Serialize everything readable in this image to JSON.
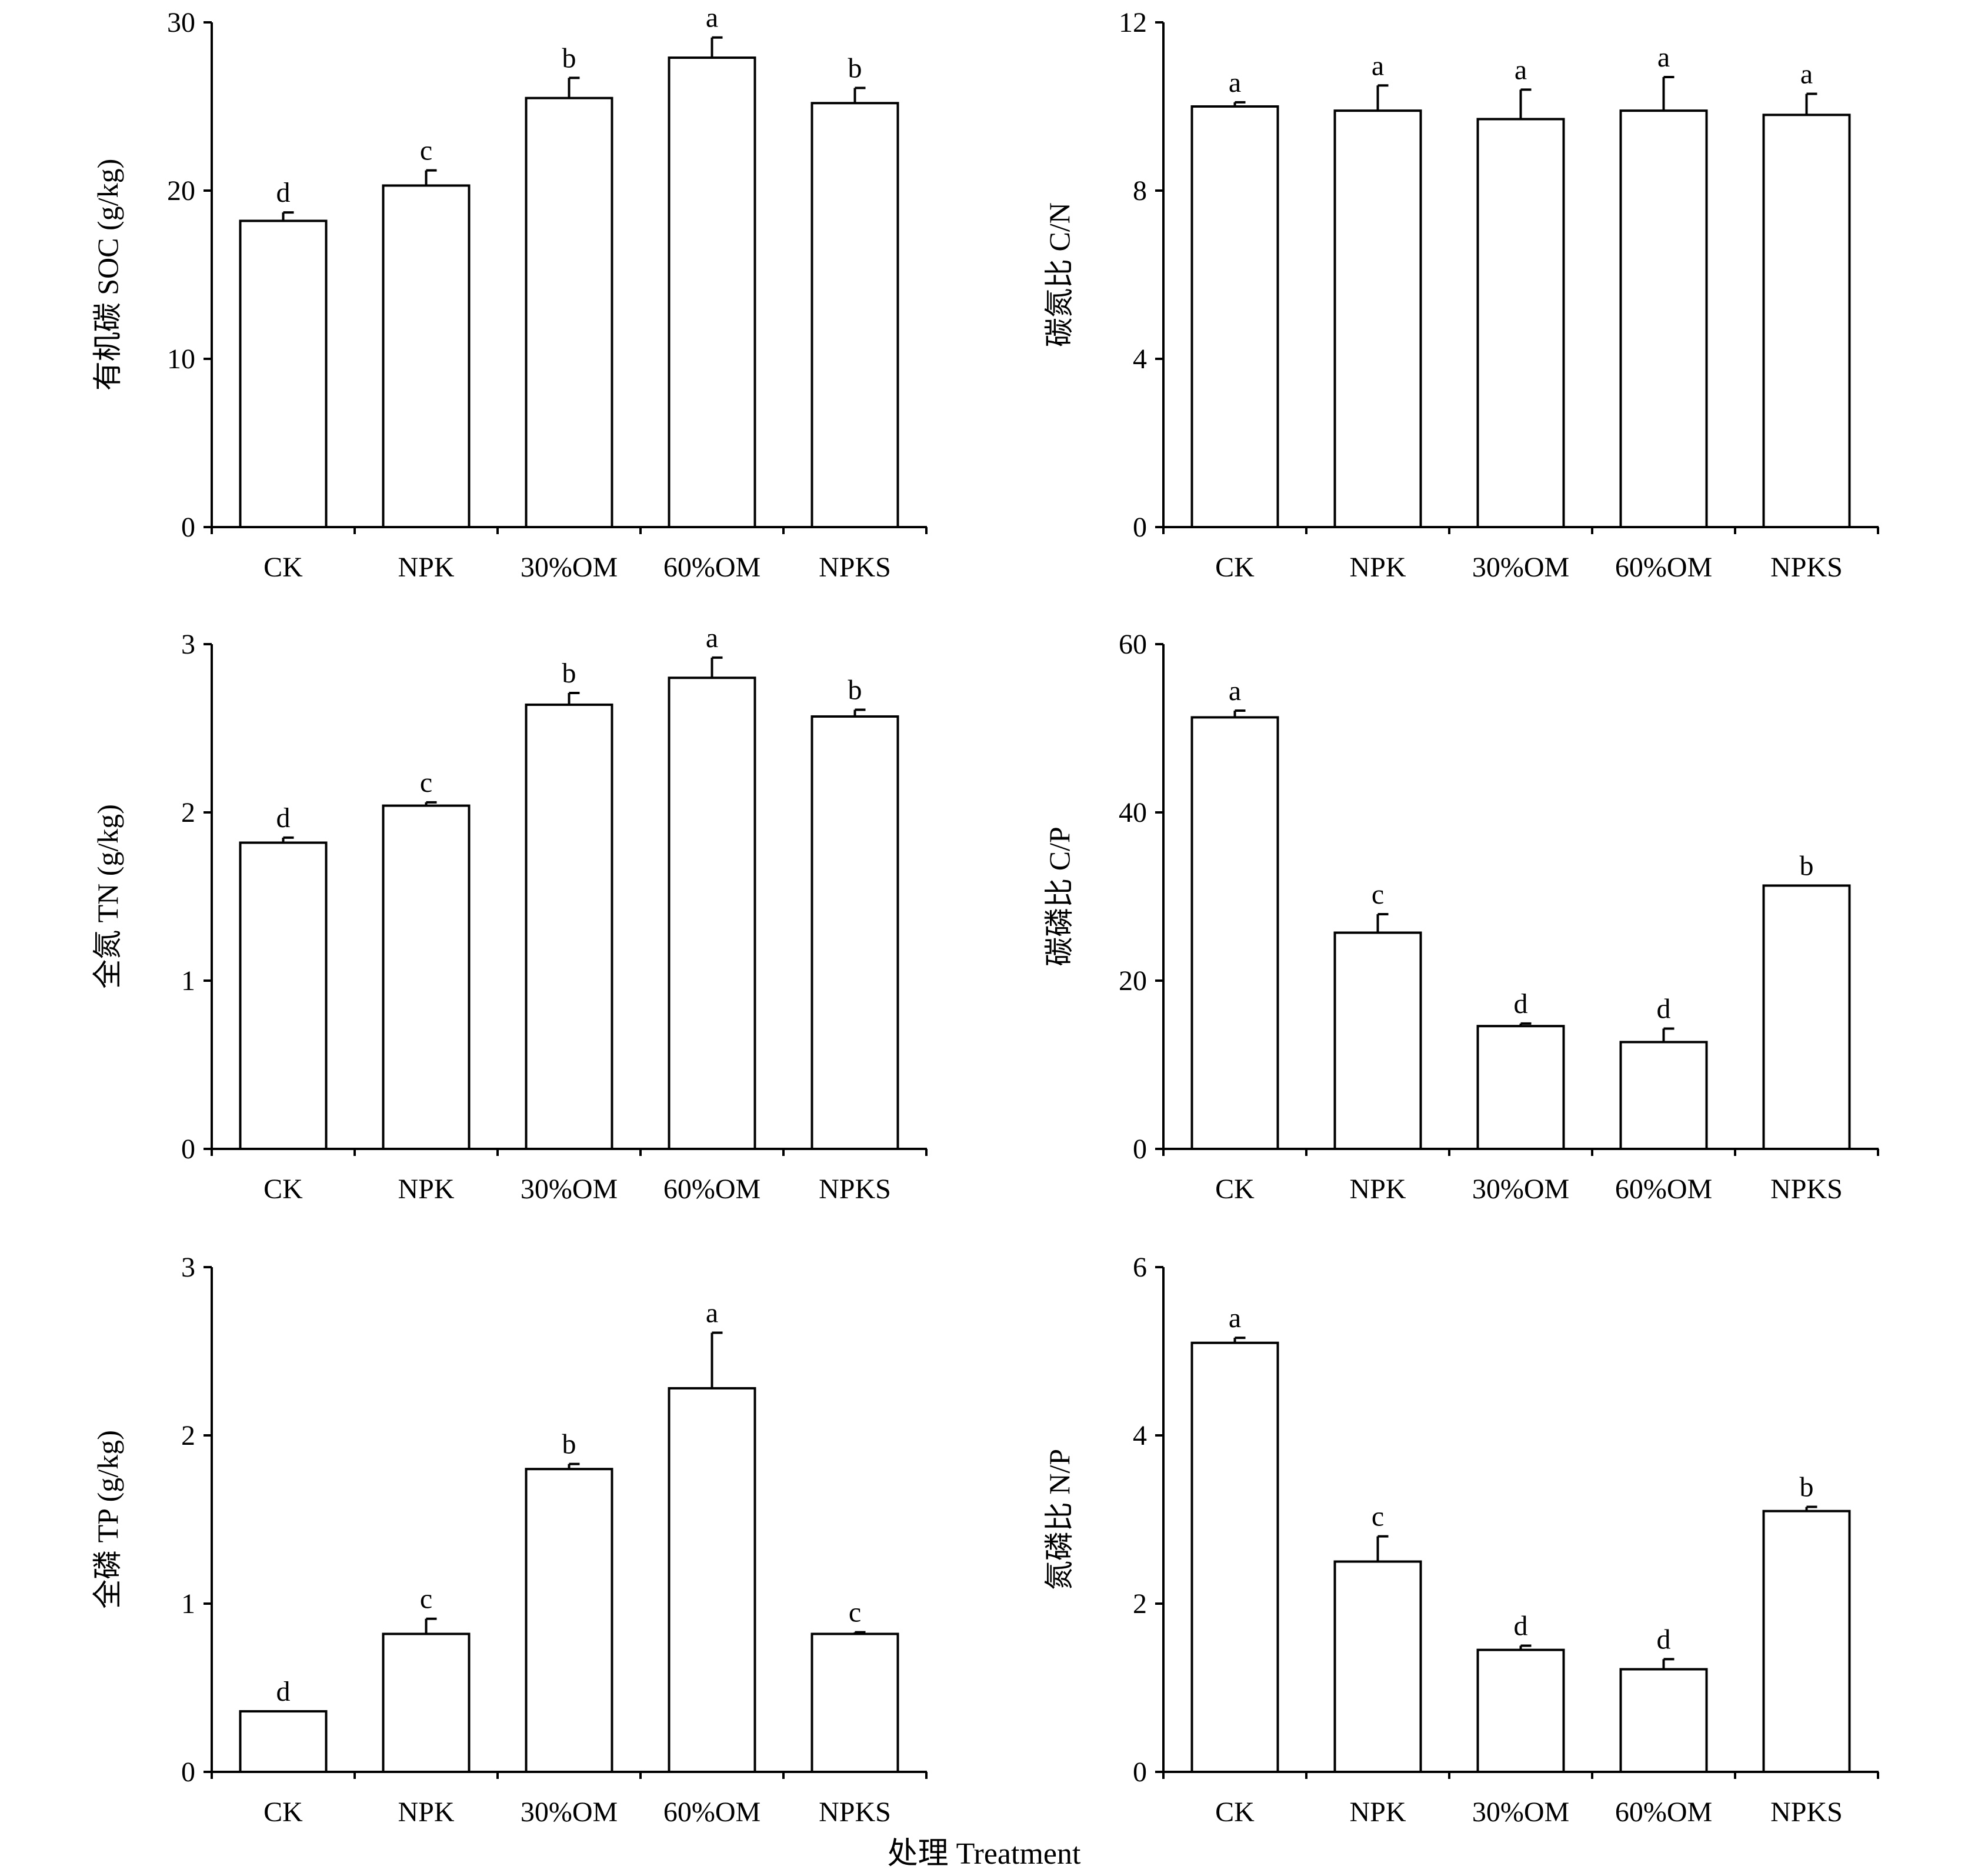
{
  "x_axis_title": "处理 Treatment",
  "chart_data": [
    {
      "type": "bar",
      "categories": [
        "CK",
        "NPK",
        "30%OM",
        "60%OM",
        "NPKS"
      ],
      "ylabel": "有机碳 SOC (g/kg)",
      "ylim": [
        0,
        30
      ],
      "yticks": [
        0,
        10,
        20,
        30
      ],
      "values": [
        18.2,
        20.3,
        25.5,
        27.9,
        25.2
      ],
      "errors": [
        0.5,
        0.9,
        1.2,
        1.2,
        0.9
      ],
      "letters": [
        "d",
        "c",
        "b",
        "a",
        "b"
      ]
    },
    {
      "type": "bar",
      "categories": [
        "CK",
        "NPK",
        "30%OM",
        "60%OM",
        "NPKS"
      ],
      "ylabel": "碳氮比 C/N",
      "ylim": [
        0,
        12
      ],
      "yticks": [
        0,
        4,
        8,
        12
      ],
      "values": [
        10.0,
        9.9,
        9.7,
        9.9,
        9.8
      ],
      "errors": [
        0.1,
        0.6,
        0.7,
        0.8,
        0.5
      ],
      "letters": [
        "a",
        "a",
        "a",
        "a",
        "a"
      ]
    },
    {
      "type": "bar",
      "categories": [
        "CK",
        "NPK",
        "30%OM",
        "60%OM",
        "NPKS"
      ],
      "ylabel": "全氮 TN (g/kg)",
      "ylim": [
        0,
        3
      ],
      "yticks": [
        0,
        1,
        2,
        3
      ],
      "values": [
        1.82,
        2.04,
        2.64,
        2.8,
        2.57
      ],
      "errors": [
        0.03,
        0.02,
        0.07,
        0.12,
        0.04
      ],
      "letters": [
        "d",
        "c",
        "b",
        "a",
        "b"
      ]
    },
    {
      "type": "bar",
      "categories": [
        "CK",
        "NPK",
        "30%OM",
        "60%OM",
        "NPKS"
      ],
      "ylabel": "碳磷比 C/P",
      "ylim": [
        0,
        60
      ],
      "yticks": [
        0,
        20,
        40,
        60
      ],
      "values": [
        51.3,
        25.7,
        14.6,
        12.7,
        31.3
      ],
      "errors": [
        0.8,
        2.2,
        0.3,
        1.6,
        0.0
      ],
      "letters": [
        "a",
        "c",
        "d",
        "d",
        "b"
      ]
    },
    {
      "type": "bar",
      "categories": [
        "CK",
        "NPK",
        "30%OM",
        "60%OM",
        "NPKS"
      ],
      "ylabel": "全磷 TP (g/kg)",
      "ylim": [
        0,
        3
      ],
      "yticks": [
        0,
        1,
        2,
        3
      ],
      "values": [
        0.36,
        0.82,
        1.8,
        2.28,
        0.82
      ],
      "errors": [
        0.0,
        0.09,
        0.03,
        0.33,
        0.01
      ],
      "letters": [
        "d",
        "c",
        "b",
        "a",
        "c"
      ]
    },
    {
      "type": "bar",
      "categories": [
        "CK",
        "NPK",
        "30%OM",
        "60%OM",
        "NPKS"
      ],
      "ylabel": "氮磷比 N/P",
      "ylim": [
        0,
        6
      ],
      "yticks": [
        0,
        2,
        4,
        6
      ],
      "values": [
        5.1,
        2.5,
        1.45,
        1.22,
        3.1
      ],
      "errors": [
        0.06,
        0.3,
        0.05,
        0.12,
        0.05
      ],
      "letters": [
        "a",
        "c",
        "d",
        "d",
        "b"
      ]
    }
  ]
}
